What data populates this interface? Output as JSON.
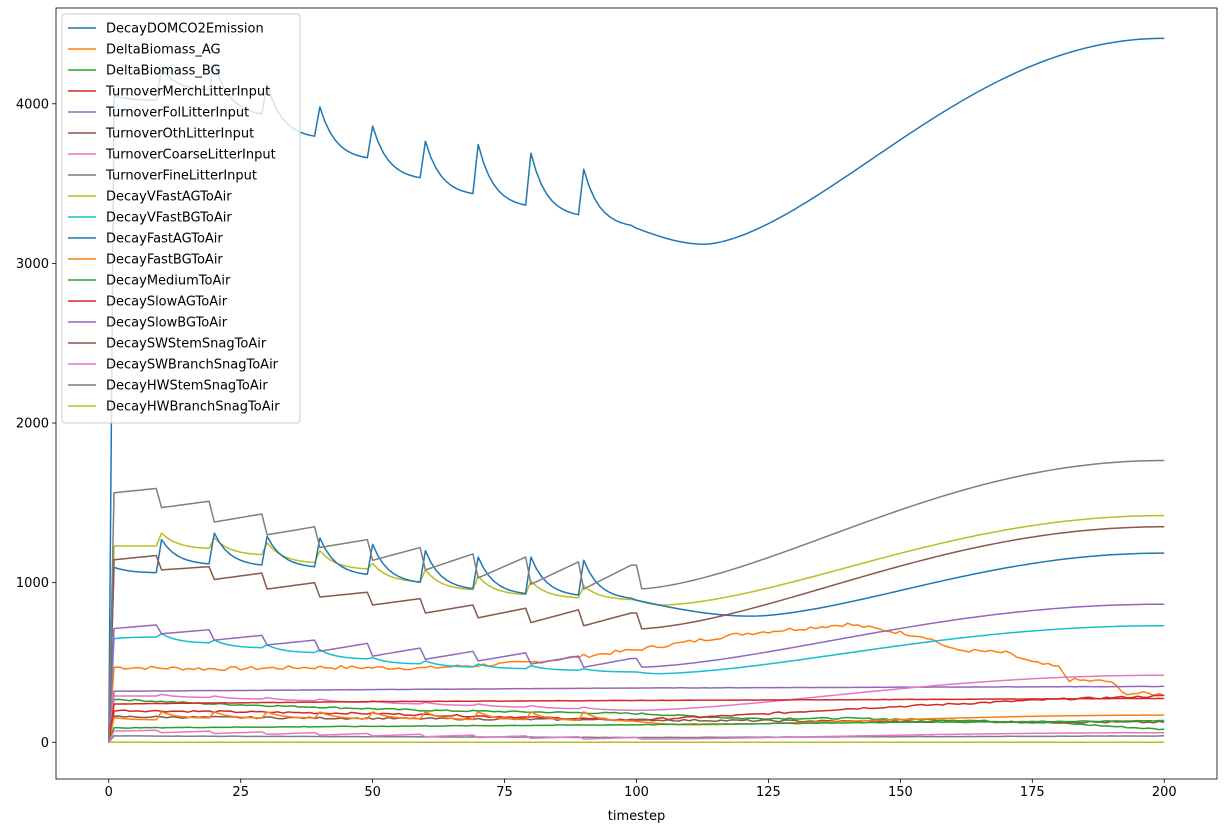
{
  "chart_data": {
    "type": "line",
    "title": "",
    "xlabel": "timestep",
    "ylabel": "",
    "xlim": [
      -10,
      210
    ],
    "ylim": [
      -230,
      4600
    ],
    "xticks": [
      0,
      25,
      50,
      75,
      100,
      125,
      150,
      175,
      200
    ],
    "yticks": [
      0,
      1000,
      2000,
      3000,
      4000
    ],
    "grid": false,
    "legend_position": "upper left",
    "series": [
      {
        "name": "DecayDOMCO2Emission",
        "color": "#1f77b4",
        "kind": "sawtooth",
        "params": {
          "first": 4080,
          "seg_starts": [
            4060,
            4220,
            4250,
            4120,
            3980,
            3860,
            3765,
            3745,
            3690,
            3590
          ],
          "seg_ends": [
            4020,
            4080,
            3920,
            3780,
            3645,
            3520,
            3420,
            3345,
            3285,
            3220
          ],
          "min_t": 113,
          "min_v": 3120,
          "end_v": 4410
        }
      },
      {
        "name": "DeltaBiomass_AG",
        "color": "#ff7f0e",
        "kind": "noisy",
        "params": {
          "points": [
            [
              1,
              470
            ],
            [
              20,
              460
            ],
            [
              40,
              470
            ],
            [
              60,
              465
            ],
            [
              80,
              500
            ],
            [
              100,
              580
            ],
            [
              120,
              680
            ],
            [
              140,
              740
            ],
            [
              155,
              660
            ],
            [
              160,
              580
            ],
            [
              170,
              560
            ],
            [
              175,
              500
            ],
            [
              180,
              470
            ],
            [
              182,
              390
            ],
            [
              190,
              380
            ],
            [
              192,
              310
            ],
            [
              200,
              300
            ]
          ],
          "noise": 12
        }
      },
      {
        "name": "DeltaBiomass_BG",
        "color": "#2ca02c",
        "kind": "noisy",
        "params": {
          "points": [
            [
              1,
              270
            ],
            [
              20,
              240
            ],
            [
              40,
              220
            ],
            [
              60,
              200
            ],
            [
              80,
              190
            ],
            [
              100,
              180
            ],
            [
              120,
              150
            ],
            [
              140,
              150
            ],
            [
              160,
              140
            ],
            [
              180,
              120
            ],
            [
              200,
              80
            ]
          ],
          "noise": 5
        }
      },
      {
        "name": "TurnoverMerchLitterInput",
        "color": "#d62728",
        "kind": "noisy",
        "params": {
          "points": [
            [
              1,
              200
            ],
            [
              50,
              180
            ],
            [
              100,
              140
            ],
            [
              120,
              170
            ],
            [
              140,
              210
            ],
            [
              160,
              240
            ],
            [
              180,
              270
            ],
            [
              200,
              290
            ]
          ],
          "noise": 6
        }
      },
      {
        "name": "TurnoverFolLitterInput",
        "color": "#9467bd",
        "kind": "noisy",
        "params": {
          "points": [
            [
              1,
              320
            ],
            [
              50,
              330
            ],
            [
              100,
              340
            ],
            [
              200,
              350
            ]
          ],
          "noise": 1
        }
      },
      {
        "name": "TurnoverOthLitterInput",
        "color": "#8c564b",
        "kind": "noisy",
        "params": {
          "points": [
            [
              1,
              160
            ],
            [
              50,
              150
            ],
            [
              100,
              140
            ],
            [
              150,
              130
            ],
            [
              200,
              125
            ]
          ],
          "noise": 6
        }
      },
      {
        "name": "TurnoverCoarseLitterInput",
        "color": "#e377c2",
        "kind": "sawtooth",
        "params": {
          "first": 280,
          "seg_starts": [
            290,
            300,
            290,
            280,
            270,
            260,
            250,
            240,
            230,
            220
          ],
          "seg_ends": [
            290,
            280,
            270,
            260,
            250,
            240,
            230,
            220,
            210,
            200
          ],
          "min_t": 100,
          "min_v": 200,
          "end_v": 420
        }
      },
      {
        "name": "TurnoverFineLitterInput",
        "color": "#7f7f7f",
        "kind": "noisy",
        "params": {
          "points": [
            [
              1,
              40
            ],
            [
              100,
              30
            ],
            [
              200,
              40
            ]
          ],
          "noise": 1
        }
      },
      {
        "name": "DecayVFastAGToAir",
        "color": "#bcbd22",
        "kind": "sawtooth",
        "params": {
          "first": 1230,
          "seg_starts": [
            1230,
            1310,
            1280,
            1250,
            1200,
            1120,
            1080,
            1040,
            1010,
            980
          ],
          "seg_ends": [
            1230,
            1210,
            1170,
            1120,
            1080,
            1000,
            950,
            920,
            900,
            890
          ],
          "min_t": 105,
          "min_v": 860,
          "end_v": 1420
        }
      },
      {
        "name": "DecayVFastBGToAir",
        "color": "#17becf",
        "kind": "sawtooth",
        "params": {
          "first": 645,
          "seg_starts": [
            645,
            680,
            640,
            610,
            580,
            530,
            510,
            490,
            480,
            460
          ],
          "seg_ends": [
            660,
            620,
            590,
            560,
            520,
            490,
            470,
            460,
            450,
            440
          ],
          "min_t": 104,
          "min_v": 430,
          "end_v": 730
        }
      },
      {
        "name": "DecayFastAGToAir",
        "color": "#1f77b4",
        "kind": "sawtooth",
        "params": {
          "first": 1110,
          "seg_starts": [
            1110,
            1270,
            1310,
            1290,
            1280,
            1240,
            1200,
            1160,
            1160,
            1140
          ],
          "seg_ends": [
            1060,
            1110,
            1100,
            1090,
            1040,
            990,
            950,
            920,
            910,
            890
          ],
          "min_t": 122,
          "min_v": 790,
          "end_v": 1185
        }
      },
      {
        "name": "DecayFastBGToAir",
        "color": "#ff7f0e",
        "kind": "sawtooth",
        "params": {
          "first": 150,
          "seg_starts": [
            160,
            190,
            190,
            190,
            190,
            190,
            190,
            190,
            190,
            190
          ],
          "seg_ends": [
            140,
            150,
            150,
            150,
            145,
            145,
            140,
            140,
            135,
            130
          ],
          "min_t": 110,
          "min_v": 110,
          "end_v": 170
        }
      },
      {
        "name": "DecayMediumToAir",
        "color": "#2ca02c",
        "kind": "noisy",
        "params": {
          "points": [
            [
              1,
              90
            ],
            [
              50,
              100
            ],
            [
              100,
              110
            ],
            [
              150,
              125
            ],
            [
              200,
              135
            ]
          ],
          "noise": 2
        }
      },
      {
        "name": "DecaySlowAGToAir",
        "color": "#d62728",
        "kind": "noisy",
        "params": {
          "points": [
            [
              1,
              240
            ],
            [
              50,
              255
            ],
            [
              100,
              262
            ],
            [
              150,
              268
            ],
            [
              200,
              275
            ]
          ],
          "noise": 1
        }
      },
      {
        "name": "DecaySlowBGToAir",
        "color": "#9467bd",
        "kind": "sawtooth",
        "params": {
          "first": 700,
          "seg_starts": [
            710,
            680,
            640,
            610,
            570,
            540,
            520,
            510,
            490,
            470
          ],
          "seg_ends": [
            735,
            705,
            670,
            640,
            620,
            590,
            570,
            560,
            540,
            525
          ],
          "min_t": 100,
          "min_v": 470,
          "end_v": 865,
          "rise_within": true
        }
      },
      {
        "name": "DecaySWStemSnagToAir",
        "color": "#8c564b",
        "kind": "sawtooth",
        "params": {
          "first": 1140,
          "seg_starts": [
            1140,
            1080,
            1020,
            960,
            910,
            860,
            810,
            780,
            750,
            730
          ],
          "seg_ends": [
            1170,
            1100,
            1060,
            1000,
            940,
            900,
            860,
            840,
            830,
            810
          ],
          "min_t": 100,
          "min_v": 710,
          "end_v": 1350,
          "rise_within": true
        }
      },
      {
        "name": "DecaySWBranchSnagToAir",
        "color": "#e377c2",
        "kind": "sawtooth",
        "params": {
          "first": 70,
          "seg_starts": [
            70,
            60,
            55,
            50,
            45,
            40,
            35,
            30,
            25,
            20
          ],
          "seg_ends": [
            75,
            70,
            65,
            60,
            55,
            50,
            45,
            40,
            35,
            30
          ],
          "min_t": 100,
          "min_v": 20,
          "end_v": 60,
          "rise_within": true
        }
      },
      {
        "name": "DecayHWStemSnagToAir",
        "color": "#7f7f7f",
        "kind": "sawtooth",
        "params": {
          "first": 1560,
          "seg_starts": [
            1560,
            1470,
            1380,
            1300,
            1220,
            1140,
            1080,
            1030,
            990,
            960
          ],
          "seg_ends": [
            1590,
            1510,
            1430,
            1350,
            1270,
            1220,
            1180,
            1160,
            1130,
            1110
          ],
          "min_t": 100,
          "min_v": 960,
          "end_v": 1765,
          "rise_within": true
        }
      },
      {
        "name": "DecayHWBranchSnagToAir",
        "color": "#bcbd22",
        "kind": "noisy",
        "params": {
          "points": [
            [
              1,
              0
            ],
            [
              200,
              0
            ]
          ],
          "noise": 0
        }
      }
    ]
  }
}
